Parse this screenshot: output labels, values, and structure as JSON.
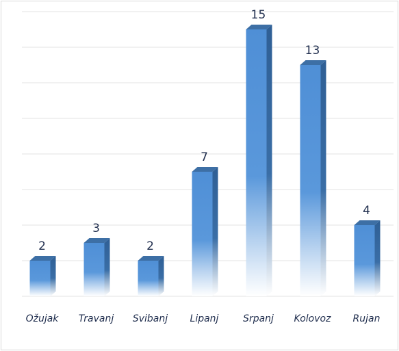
{
  "chart_data": {
    "type": "bar3d",
    "categories": [
      "Ožujak",
      "Travanj",
      "Svibanj",
      "Lipanj",
      "Srpanj",
      "Kolovoz",
      "Rujan"
    ],
    "values": [
      2,
      3,
      2,
      7,
      15,
      13,
      4
    ],
    "color": "#4f8fd6",
    "ylim": [
      0,
      16
    ],
    "yticks": [
      0,
      2,
      4,
      6,
      8,
      10,
      12,
      14,
      16
    ],
    "grid": true
  }
}
